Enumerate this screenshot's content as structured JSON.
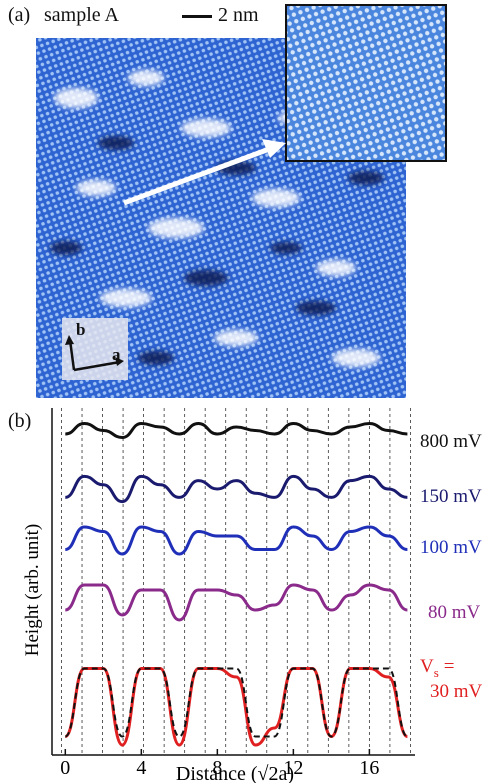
{
  "figure": {
    "panel_a_label": "(a)",
    "panel_b_label": "(b)",
    "sample": "sample A",
    "scale_bar": "2 nm",
    "lattice_axis_a": "a",
    "lattice_axis_b": "b"
  },
  "chart_data": {
    "type": "line",
    "xlabel": "Distance (√2a)",
    "ylabel": "Height (arb. unit)",
    "xlim": [
      -0.7,
      18.4
    ],
    "xticks": [
      0,
      4,
      8,
      12,
      16
    ],
    "grid": "vertical dashed lines every ~1.1 units",
    "series": [
      {
        "name": "800 mV",
        "color": "#111111",
        "x": [
          0,
          1,
          2,
          3,
          4,
          5,
          6,
          7,
          8,
          9,
          10,
          11,
          12,
          13,
          14,
          15,
          16,
          17,
          18
        ],
        "y": [
          0.6,
          0.9,
          0.7,
          0.5,
          0.9,
          0.8,
          0.6,
          0.9,
          0.6,
          0.8,
          0.7,
          0.6,
          0.9,
          0.7,
          0.6,
          0.8,
          0.9,
          0.7,
          0.6
        ]
      },
      {
        "name": "150 mV",
        "color": "#1a1a6e",
        "x": [
          0,
          1,
          2,
          3,
          4,
          5,
          6,
          7,
          8,
          9,
          10,
          11,
          12,
          13,
          14,
          15,
          16,
          17,
          18
        ],
        "y": [
          0.3,
          0.8,
          0.6,
          0.2,
          0.8,
          0.6,
          0.3,
          0.7,
          0.5,
          0.7,
          0.4,
          0.3,
          0.8,
          0.5,
          0.3,
          0.7,
          0.8,
          0.5,
          0.3
        ]
      },
      {
        "name": "100 mV",
        "color": "#1f2fb8",
        "x": [
          0,
          1,
          2,
          3,
          4,
          5,
          6,
          7,
          8,
          9,
          10,
          11,
          12,
          13,
          14,
          15,
          16,
          17,
          18
        ],
        "y": [
          0.3,
          0.8,
          0.7,
          0.2,
          0.8,
          0.7,
          0.2,
          0.7,
          0.6,
          0.6,
          0.3,
          0.3,
          0.8,
          0.6,
          0.3,
          0.7,
          0.8,
          0.6,
          0.3
        ]
      },
      {
        "name": "80 mV",
        "color": "#8a2a8a",
        "x": [
          0,
          1,
          2,
          3,
          4,
          5,
          6,
          7,
          8,
          9,
          10,
          11,
          12,
          13,
          14,
          15,
          16,
          17,
          18
        ],
        "y": [
          0.3,
          0.8,
          0.8,
          0.2,
          0.7,
          0.7,
          0.1,
          0.7,
          0.7,
          0.6,
          0.3,
          0.4,
          0.8,
          0.7,
          0.3,
          0.6,
          0.8,
          0.7,
          0.3
        ]
      },
      {
        "name": "Vs = 30 mV",
        "color": "#e02020",
        "x": [
          0,
          1,
          2,
          3,
          4,
          5,
          6,
          7,
          8,
          9,
          10,
          11,
          12,
          13,
          14,
          15,
          16,
          17,
          18
        ],
        "y": [
          0.1,
          0.9,
          0.9,
          0.0,
          0.9,
          0.9,
          0.0,
          0.9,
          0.9,
          0.8,
          0.0,
          0.2,
          0.9,
          0.9,
          0.1,
          0.9,
          0.9,
          0.8,
          0.1
        ]
      },
      {
        "name": "",
        "color": "#111111",
        "style": "dashed",
        "x": [
          0,
          1,
          2,
          3,
          4,
          5,
          6,
          7,
          8,
          9,
          10,
          11,
          12,
          13,
          14,
          15,
          16,
          17,
          18
        ],
        "y": [
          0.1,
          0.9,
          0.9,
          0.1,
          0.9,
          0.9,
          0.1,
          0.9,
          0.9,
          0.9,
          0.1,
          0.1,
          0.9,
          0.9,
          0.1,
          0.9,
          0.9,
          0.9,
          0.1
        ]
      }
    ],
    "bias_labels": [
      "800 mV",
      "150 mV",
      "100 mV",
      "80 mV",
      "V",
      "s",
      "=",
      "30 mV"
    ]
  }
}
